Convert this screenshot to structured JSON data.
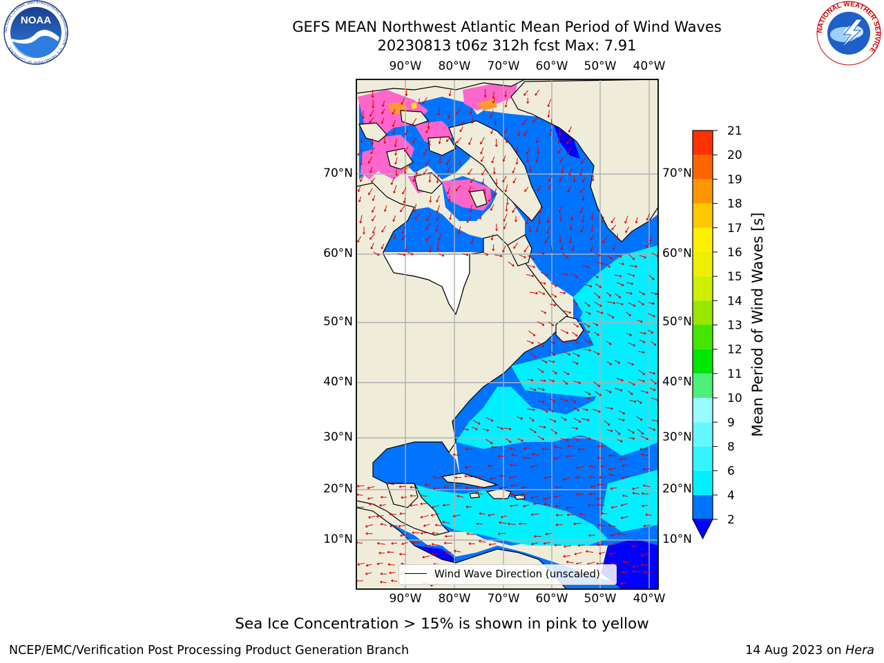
{
  "header": {
    "title_line1": "GEFS MEAN Northwest Atlantic Mean Period of Wind Waves",
    "title_line2": "20230813 t06z 312h fcst   Max: 7.91"
  },
  "logos": {
    "left": {
      "name": "NOAA",
      "ring_text": "NATIONAL OCEANIC AND ATMOSPHERIC ADMINISTRATION · U.S. DEPARTMENT OF COMMERCE"
    },
    "right": {
      "name": "NATIONAL WEATHER SERVICE"
    }
  },
  "map": {
    "longitude_labels": [
      "90°W",
      "80°W",
      "70°W",
      "60°W",
      "50°W",
      "40°W"
    ],
    "latitude_labels": [
      "70°N",
      "60°N",
      "50°N",
      "40°N",
      "30°N",
      "20°N",
      "10°N"
    ],
    "colors": {
      "land": "#efedda",
      "coast": "#000000",
      "grid": "#b0b0b0",
      "vectors": "#e00000",
      "ice_pink": "#ff66cc",
      "ice_orange": "#ff9933",
      "ice_yellow": "#ffe600"
    },
    "legend_label": "Wind Wave Direction (unscaled)"
  },
  "colorbar": {
    "label": "Mean Period of Wind Waves [s]",
    "ticks": [
      "2",
      "4",
      "6",
      "8",
      "9",
      "10",
      "11",
      "12",
      "13",
      "14",
      "15",
      "16",
      "17",
      "18",
      "19",
      "20",
      "21"
    ],
    "colors": [
      "#0073ff",
      "#00f0ff",
      "#33f5ff",
      "#66f8ff",
      "#99faff",
      "#4cf07a",
      "#00e600",
      "#44e600",
      "#99e600",
      "#ccf000",
      "#eef000",
      "#fff000",
      "#ffc800",
      "#ff9600",
      "#ff6400",
      "#ff3200",
      "#ff0000"
    ],
    "extend_color": "#0000ff"
  },
  "caption": "Sea Ice Concentration > 15% is shown in pink to yellow",
  "footer": {
    "left": "NCEP/EMC/Verification Post Processing Product Generation Branch",
    "right_date": "14 Aug 2023 on ",
    "right_host": "Hera"
  }
}
